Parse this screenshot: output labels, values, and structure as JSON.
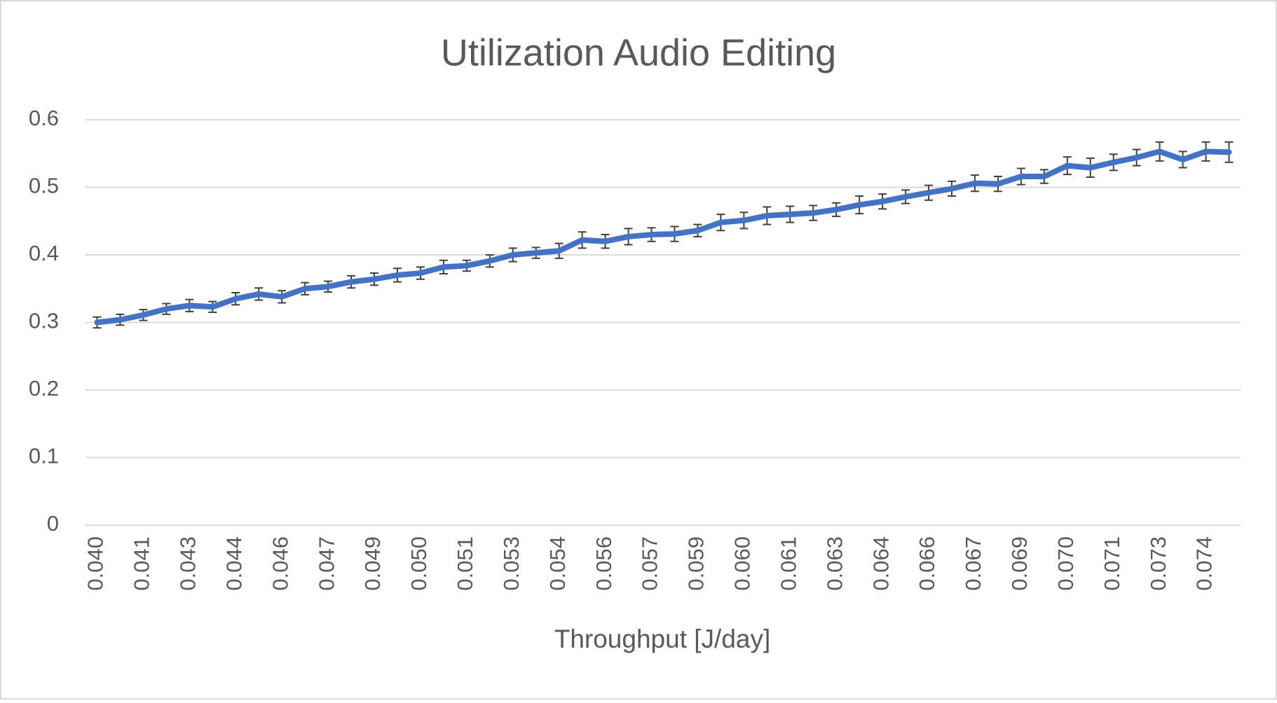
{
  "chart_data": {
    "type": "line",
    "title": "Utilization Audio Editing",
    "x_label": "Throughput [J/day]",
    "categories": [
      "0.040",
      null,
      "0.041",
      null,
      "0.043",
      null,
      "0.044",
      null,
      "0.046",
      null,
      "0.047",
      null,
      "0.049",
      null,
      "0.050",
      null,
      "0.051",
      null,
      "0.053",
      null,
      "0.054",
      null,
      "0.056",
      null,
      "0.057",
      null,
      "0.059",
      null,
      "0.060",
      null,
      "0.061",
      null,
      "0.063",
      null,
      "0.064",
      null,
      "0.066",
      null,
      "0.067",
      null,
      "0.069",
      null,
      "0.070",
      null,
      "0.071",
      null,
      "0.073",
      null,
      "0.074",
      null
    ],
    "series": [
      {
        "color": "#4472c4",
        "values": [
          0.3,
          0.304,
          0.311,
          0.32,
          0.325,
          0.323,
          0.335,
          0.342,
          0.338,
          0.35,
          0.353,
          0.36,
          0.364,
          0.37,
          0.373,
          0.382,
          0.384,
          0.391,
          0.4,
          0.403,
          0.406,
          0.422,
          0.42,
          0.427,
          0.43,
          0.431,
          0.436,
          0.448,
          0.451,
          0.458,
          0.46,
          0.462,
          0.467,
          0.474,
          0.479,
          0.486,
          0.492,
          0.498,
          0.506,
          0.505,
          0.516,
          0.516,
          0.532,
          0.529,
          0.537,
          0.544,
          0.553,
          0.541,
          0.553,
          0.552
        ],
        "errors": [
          0.008,
          0.008,
          0.008,
          0.008,
          0.009,
          0.008,
          0.009,
          0.009,
          0.009,
          0.009,
          0.008,
          0.009,
          0.009,
          0.01,
          0.009,
          0.01,
          0.008,
          0.009,
          0.01,
          0.008,
          0.011,
          0.012,
          0.01,
          0.012,
          0.01,
          0.011,
          0.009,
          0.012,
          0.012,
          0.013,
          0.012,
          0.011,
          0.01,
          0.013,
          0.011,
          0.01,
          0.011,
          0.011,
          0.012,
          0.011,
          0.012,
          0.01,
          0.013,
          0.014,
          0.012,
          0.012,
          0.014,
          0.012,
          0.014,
          0.015
        ]
      }
    ],
    "ylim": [
      0,
      0.6
    ],
    "yticks": [
      0,
      0.1,
      0.2,
      0.3,
      0.4,
      0.5,
      0.6
    ],
    "grid": true
  }
}
